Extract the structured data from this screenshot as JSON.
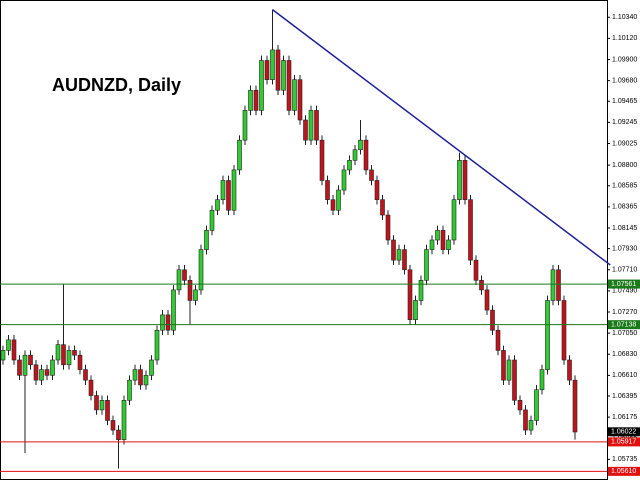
{
  "chart_data": {
    "type": "candlestick",
    "title": "AUDNZD, Daily",
    "up_color": "#2ecc2e",
    "down_color": "#c0141c",
    "ylim": [
      1.0552,
      1.1052
    ],
    "yticks": [
      {
        "value": 1.1034,
        "label": "1.10340"
      },
      {
        "value": 1.1012,
        "label": "1.10120"
      },
      {
        "value": 1.099,
        "label": "1.09900"
      },
      {
        "value": 1.0968,
        "label": "1.09680"
      },
      1.09465,
      1.09245,
      1.09025,
      {
        "value": 1.088,
        "label": "1.08800"
      },
      1.08585,
      1.08365,
      1.08145,
      {
        "value": 1.0793,
        "label": "1.07930"
      },
      {
        "value": 1.0771,
        "label": "1.07710"
      },
      {
        "value": 1.0749,
        "label": "1.07490"
      },
      {
        "value": 1.0727,
        "label": "1.07270"
      },
      {
        "value": 1.0705,
        "label": "1.07050"
      },
      {
        "value": 1.0683,
        "label": "1.06830"
      },
      {
        "value": 1.0661,
        "label": "1.06610"
      },
      1.06395,
      1.06175,
      1.05955,
      1.05735
    ],
    "hlines": [
      {
        "value": 1.07561,
        "color": "#1a7a1a"
      },
      {
        "value": 1.07138,
        "color": "#1a7a1a"
      },
      {
        "value": 1.05917,
        "color": "#e01010"
      },
      {
        "value": 1.0561,
        "label": "1.05610",
        "color": "#e01010"
      }
    ],
    "last_price": {
      "value": 1.06022,
      "color": "#000000"
    },
    "trendline": {
      "points": [
        [
          49,
          1.1042
        ],
        [
          110.4,
          1.0776
        ]
      ],
      "color": "#1f1f9e"
    },
    "candles": [
      [
        1.0677,
        1.0692,
        1.0672,
        1.0687
      ],
      [
        1.0687,
        1.0703,
        1.0682,
        1.0698
      ],
      [
        1.0698,
        1.0703,
        1.0672,
        1.0677
      ],
      [
        1.0677,
        1.0682,
        1.0656,
        1.0661
      ],
      [
        1.0661,
        1.0687,
        1.058,
        1.0682
      ],
      [
        1.0682,
        1.0687,
        1.0667,
        1.0672
      ],
      [
        1.0672,
        1.0677,
        1.0651,
        1.0656
      ],
      [
        1.0656,
        1.0672,
        1.0651,
        1.0667
      ],
      [
        1.0667,
        1.0672,
        1.0656,
        1.0661
      ],
      [
        1.0661,
        1.0682,
        1.0656,
        1.0677
      ],
      [
        1.0677,
        1.0698,
        1.0672,
        1.0693
      ],
      [
        1.0693,
        1.0756,
        1.0667,
        1.0672
      ],
      [
        1.0672,
        1.0692,
        1.0667,
        1.0687
      ],
      [
        1.0687,
        1.0692,
        1.0677,
        1.0682
      ],
      [
        1.0682,
        1.0687,
        1.0662,
        1.0667
      ],
      [
        1.0667,
        1.0672,
        1.0651,
        1.0656
      ],
      [
        1.0656,
        1.0661,
        1.0635,
        1.064
      ],
      [
        1.064,
        1.0645,
        1.062,
        1.0625
      ],
      [
        1.0625,
        1.064,
        1.062,
        1.0635
      ],
      [
        1.0635,
        1.064,
        1.0609,
        1.0614
      ],
      [
        1.0614,
        1.0619,
        1.0599,
        1.0604
      ],
      [
        1.0604,
        1.0609,
        1.0564,
        1.0594
      ],
      [
        1.0594,
        1.064,
        1.0589,
        1.0635
      ],
      [
        1.0635,
        1.0661,
        1.063,
        1.0656
      ],
      [
        1.0656,
        1.0672,
        1.0651,
        1.0667
      ],
      [
        1.0667,
        1.0672,
        1.0646,
        1.0651
      ],
      [
        1.0651,
        1.0666,
        1.0646,
        1.0661
      ],
      [
        1.0661,
        1.0682,
        1.0656,
        1.0677
      ],
      [
        1.0677,
        1.0713,
        1.0672,
        1.0708
      ],
      [
        1.0708,
        1.0729,
        1.0703,
        1.0724
      ],
      [
        1.0724,
        1.0729,
        1.0703,
        1.0708
      ],
      [
        1.0708,
        1.0755,
        1.0703,
        1.075
      ],
      [
        1.075,
        1.0776,
        1.0745,
        1.0771
      ],
      [
        1.0771,
        1.0776,
        1.0755,
        1.076
      ],
      [
        1.076,
        1.0765,
        1.0714,
        1.0739
      ],
      [
        1.0739,
        1.0755,
        1.0734,
        1.075
      ],
      [
        1.075,
        1.0797,
        1.0745,
        1.0792
      ],
      [
        1.0792,
        1.0817,
        1.0787,
        1.0812
      ],
      [
        1.0812,
        1.0838,
        1.0807,
        1.0833
      ],
      [
        1.0833,
        1.0849,
        1.0828,
        1.0844
      ],
      [
        1.0844,
        1.0869,
        1.0839,
        1.0864
      ],
      [
        1.0864,
        1.0869,
        1.0828,
        1.0833
      ],
      [
        1.0833,
        1.088,
        1.0828,
        1.0875
      ],
      [
        1.0875,
        1.0911,
        1.087,
        1.0906
      ],
      [
        1.0906,
        1.0942,
        1.0901,
        1.0937
      ],
      [
        1.0937,
        1.0963,
        1.0932,
        1.0958
      ],
      [
        1.0958,
        1.0963,
        1.0932,
        1.0937
      ],
      [
        1.0937,
        1.0994,
        1.0932,
        1.0989
      ],
      [
        1.0989,
        1.0994,
        1.0964,
        1.0969
      ],
      [
        1.0969,
        1.1042,
        1.0964,
        1.1
      ],
      [
        1.1,
        1.1005,
        1.0953,
        1.0958
      ],
      [
        1.0958,
        1.0994,
        1.0953,
        1.0989
      ],
      [
        1.0989,
        1.0994,
        1.0932,
        1.0937
      ],
      [
        1.0937,
        1.0974,
        1.0932,
        1.0969
      ],
      [
        1.0969,
        1.0974,
        1.0922,
        1.0927
      ],
      [
        1.0927,
        1.0932,
        1.0901,
        1.0906
      ],
      [
        1.0906,
        1.0942,
        1.0901,
        1.0937
      ],
      [
        1.0937,
        1.0942,
        1.0901,
        1.0906
      ],
      [
        1.0906,
        1.0911,
        1.0859,
        1.0864
      ],
      [
        1.0864,
        1.0869,
        1.0839,
        1.0844
      ],
      [
        1.0844,
        1.0849,
        1.0828,
        1.0833
      ],
      [
        1.0833,
        1.0859,
        1.0828,
        1.0854
      ],
      [
        1.0854,
        1.088,
        1.0849,
        1.0875
      ],
      [
        1.0875,
        1.089,
        1.087,
        1.0885
      ],
      [
        1.0885,
        1.0901,
        1.088,
        1.0896
      ],
      [
        1.0896,
        1.0927,
        1.0891,
        1.0906
      ],
      [
        1.0906,
        1.0911,
        1.087,
        1.0875
      ],
      [
        1.0875,
        1.088,
        1.0859,
        1.0864
      ],
      [
        1.0864,
        1.0869,
        1.0839,
        1.0844
      ],
      [
        1.0844,
        1.0849,
        1.0823,
        1.0828
      ],
      [
        1.0828,
        1.0833,
        1.0797,
        1.0802
      ],
      [
        1.0802,
        1.0807,
        1.0776,
        1.0781
      ],
      [
        1.0781,
        1.0797,
        1.0776,
        1.0792
      ],
      [
        1.0792,
        1.0797,
        1.0766,
        1.0771
      ],
      [
        1.0771,
        1.0776,
        1.0714,
        1.0719
      ],
      [
        1.0719,
        1.0744,
        1.0714,
        1.0739
      ],
      [
        1.0739,
        1.0765,
        1.0734,
        1.076
      ],
      [
        1.076,
        1.0797,
        1.0755,
        1.0792
      ],
      [
        1.0792,
        1.0807,
        1.0787,
        1.0802
      ],
      [
        1.0802,
        1.0817,
        1.0797,
        1.0812
      ],
      [
        1.0812,
        1.0817,
        1.0787,
        1.0792
      ],
      [
        1.0792,
        1.0807,
        1.0787,
        1.0802
      ],
      [
        1.0802,
        1.0849,
        1.0797,
        1.0844
      ],
      [
        1.0844,
        1.0893,
        1.0839,
        1.0885
      ],
      [
        1.0885,
        1.089,
        1.0839,
        1.0844
      ],
      [
        1.0844,
        1.0849,
        1.0776,
        1.0781
      ],
      [
        1.0781,
        1.0786,
        1.0755,
        1.076
      ],
      [
        1.076,
        1.0765,
        1.0745,
        1.075
      ],
      [
        1.075,
        1.0755,
        1.0724,
        1.0729
      ],
      [
        1.0729,
        1.0734,
        1.0703,
        1.0708
      ],
      [
        1.0708,
        1.0713,
        1.0682,
        1.0687
      ],
      [
        1.0687,
        1.0692,
        1.0651,
        1.0656
      ],
      [
        1.0656,
        1.0682,
        1.0651,
        1.0677
      ],
      [
        1.0677,
        1.0682,
        1.063,
        1.0635
      ],
      [
        1.0635,
        1.064,
        1.062,
        1.0625
      ],
      [
        1.0625,
        1.063,
        1.0599,
        1.0604
      ],
      [
        1.0604,
        1.0619,
        1.0599,
        1.0614
      ],
      [
        1.0614,
        1.0651,
        1.0609,
        1.0646
      ],
      [
        1.0646,
        1.0672,
        1.0641,
        1.0667
      ],
      [
        1.0667,
        1.0744,
        1.0662,
        1.0739
      ],
      [
        1.0739,
        1.0776,
        1.0734,
        1.0771
      ],
      [
        1.0771,
        1.0776,
        1.0734,
        1.0739
      ],
      [
        1.0739,
        1.0744,
        1.0672,
        1.0677
      ],
      [
        1.0677,
        1.0682,
        1.0651,
        1.0656
      ],
      [
        1.0656,
        1.0661,
        1.0594,
        1.0602
      ]
    ]
  }
}
